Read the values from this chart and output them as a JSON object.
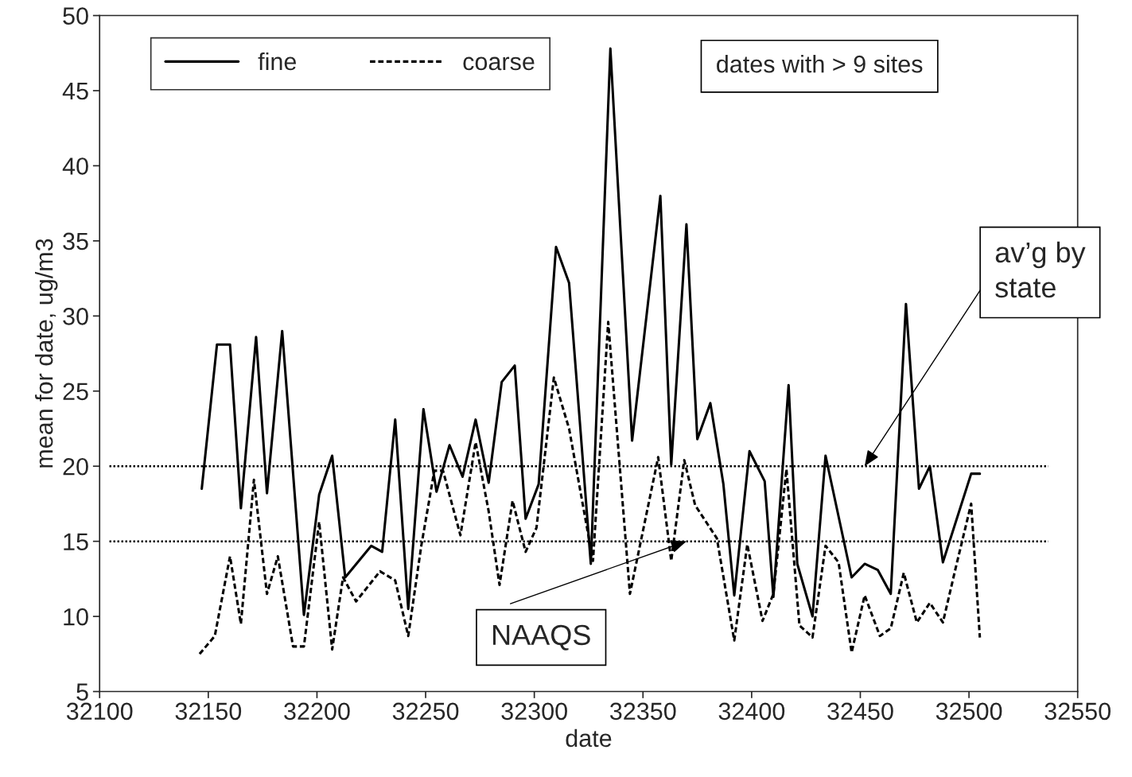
{
  "chart_data": {
    "type": "line",
    "xlabel": "date",
    "ylabel": "mean for date, ug/m3",
    "xlim": [
      32100,
      32550
    ],
    "xticks": [
      32100,
      32150,
      32200,
      32250,
      32300,
      32350,
      32400,
      32450,
      32500,
      32550
    ],
    "ylim": [
      5,
      50
    ],
    "yticks": [
      5,
      10,
      15,
      20,
      25,
      30,
      35,
      40,
      45,
      50
    ],
    "grid": false,
    "legend": "top left",
    "marker": "none",
    "series": [
      {
        "name": "fine",
        "color": "#000000",
        "line_style": "solid",
        "x": [
          32147,
          32154,
          32160,
          32165,
          32172,
          32177,
          32184,
          32194,
          32201,
          32207,
          32213,
          32225,
          32230,
          32236,
          32242,
          32249,
          32255,
          32261,
          32267,
          32273,
          32279,
          32285,
          32291,
          32296,
          32302,
          32310,
          32316,
          32326,
          32335,
          32345,
          32358,
          32363,
          32370,
          32375,
          32381,
          32387,
          32392,
          32399,
          32406,
          32410,
          32417,
          32421,
          32428,
          32434,
          32446,
          32452,
          32458,
          32464,
          32471,
          32477,
          32482,
          32488,
          32501,
          32505
        ],
        "values": [
          18.5,
          28.1,
          28.1,
          17.2,
          28.6,
          18.2,
          29.0,
          10.1,
          18.1,
          20.7,
          12.6,
          14.7,
          14.3,
          23.1,
          10.5,
          23.8,
          18.3,
          21.4,
          19.3,
          23.1,
          18.9,
          25.6,
          26.7,
          16.5,
          18.8,
          34.6,
          32.2,
          13.5,
          47.8,
          21.7,
          38.0,
          20.1,
          36.1,
          21.8,
          24.2,
          18.8,
          11.4,
          21.0,
          19.0,
          11.3,
          25.4,
          13.5,
          10.0,
          20.7,
          12.6,
          13.5,
          13.1,
          11.5,
          30.8,
          18.5,
          20.0,
          13.6,
          19.5,
          19.5
        ]
      },
      {
        "name": "coarse",
        "color": "#000000",
        "line_style": "dashed",
        "x": [
          32146,
          32153,
          32160,
          32165,
          32171,
          32177,
          32182,
          32189,
          32194,
          32201,
          32207,
          32212,
          32218,
          32229,
          32236,
          32242,
          32248,
          32254,
          32258,
          32266,
          32273,
          32279,
          32284,
          32290,
          32296,
          32301,
          32309,
          32316,
          32327,
          32334,
          32344,
          32357,
          32363,
          32369,
          32374,
          32384,
          32392,
          32398,
          32405,
          32410,
          32416,
          32422,
          32428,
          32434,
          32440,
          32446,
          32452,
          32459,
          32464,
          32470,
          32476,
          32482,
          32488,
          32494,
          32501,
          32505
        ],
        "values": [
          7.5,
          8.7,
          14.0,
          9.5,
          19.1,
          11.5,
          14.0,
          8.0,
          8.0,
          16.3,
          7.8,
          12.6,
          11.0,
          13.0,
          12.4,
          8.7,
          14.7,
          19.7,
          19.7,
          15.4,
          21.6,
          17.0,
          12.1,
          17.7,
          14.3,
          15.9,
          25.9,
          22.5,
          13.7,
          29.6,
          11.5,
          20.6,
          13.7,
          20.4,
          17.4,
          15.2,
          8.4,
          14.8,
          9.7,
          11.5,
          19.8,
          9.4,
          8.6,
          14.7,
          13.6,
          7.6,
          11.4,
          8.7,
          9.2,
          12.9,
          9.6,
          10.9,
          9.6,
          13.3,
          17.5,
          8.6
        ]
      }
    ],
    "ref_lines": [
      {
        "axis": "y",
        "value": 20,
        "label": "av’g by state",
        "color": "#000000",
        "line_style": "dotted"
      },
      {
        "axis": "y",
        "value": 15,
        "label": "NAAQS",
        "color": "#000000",
        "line_style": "dotted"
      }
    ],
    "annotations": [
      "dates with > 9 sites"
    ]
  }
}
